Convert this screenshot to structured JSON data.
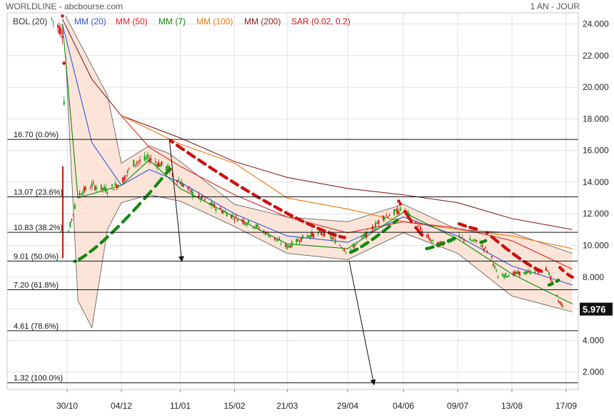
{
  "header": {
    "title": "WORLDLINE - abcbourse.com",
    "period": "1 AN - JOUR"
  },
  "legend": [
    {
      "label": "BOL (20)",
      "color": "#333333"
    },
    {
      "label": "MM (20)",
      "color": "#3355dd"
    },
    {
      "label": "MM (50)",
      "color": "#dd2222"
    },
    {
      "label": "MM (7)",
      "color": "#118811"
    },
    {
      "label": "MM (100)",
      "color": "#ee7711"
    },
    {
      "label": "MM (200)",
      "color": "#882222"
    },
    {
      "label": "SAR (0.02, 0.2)",
      "color": "#cc1111"
    }
  ],
  "chart_data": {
    "type": "line",
    "title": "WORLDLINE - abcbourse.com",
    "ylim": [
      0.9,
      24.7
    ],
    "y_ticks": [
      2,
      4,
      6,
      8,
      10,
      12,
      14,
      16,
      18,
      20,
      22,
      24
    ],
    "y_tick_labels": [
      "2.000",
      "4.000",
      "6.000",
      "8.000",
      "10.000",
      "12.000",
      "14.000",
      "16.000",
      "18.000",
      "20.000",
      "22.000",
      "24.000"
    ],
    "x_ticks": [
      "30/10",
      "04/12",
      "11/01",
      "15/02",
      "21/03",
      "29/04",
      "04/06",
      "09/07",
      "13/08",
      "17/09"
    ],
    "last_price": {
      "value": 5.976,
      "label": "5.976"
    },
    "fibonacci_levels": [
      {
        "label": "16.70  (0.0%)",
        "value": 16.7
      },
      {
        "label": "13.07  (23.6%)",
        "value": 13.07
      },
      {
        "label": "10.83  (38.2%)",
        "value": 10.83
      },
      {
        "label": "9.01  (50.0%)",
        "value": 9.01
      },
      {
        "label": "7.20  (61.8%)",
        "value": 7.2
      },
      {
        "label": "4.61  (78.6%)",
        "value": 4.61
      },
      {
        "label": "1.32  (100.0%)",
        "value": 1.32
      }
    ],
    "annotations": [
      {
        "type": "arrow",
        "from": {
          "x": "04/01",
          "y": 16.7
        },
        "to": {
          "x": "12/01",
          "y": 9.0
        }
      },
      {
        "type": "arrow",
        "from": {
          "x": "30/04",
          "y": 9.0
        },
        "to": {
          "x": "16/05",
          "y": 1.2
        }
      }
    ],
    "price_path": [
      {
        "x": "20/10",
        "y": 24.3
      },
      {
        "x": "27/10",
        "y": 23.5
      },
      {
        "x": "30/10",
        "y": 10.5
      },
      {
        "x": "06/11",
        "y": 13.2
      },
      {
        "x": "15/11",
        "y": 13.8
      },
      {
        "x": "25/11",
        "y": 13.5
      },
      {
        "x": "04/12",
        "y": 14.0
      },
      {
        "x": "12/12",
        "y": 15.2
      },
      {
        "x": "22/12",
        "y": 15.5
      },
      {
        "x": "04/01",
        "y": 14.8
      },
      {
        "x": "11/01",
        "y": 14.0
      },
      {
        "x": "20/01",
        "y": 13.2
      },
      {
        "x": "01/02",
        "y": 12.5
      },
      {
        "x": "15/02",
        "y": 11.8
      },
      {
        "x": "01/03",
        "y": 11.2
      },
      {
        "x": "12/03",
        "y": 10.5
      },
      {
        "x": "21/03",
        "y": 9.9
      },
      {
        "x": "02/04",
        "y": 10.6
      },
      {
        "x": "15/04",
        "y": 10.8
      },
      {
        "x": "29/04",
        "y": 9.6
      },
      {
        "x": "10/05",
        "y": 10.6
      },
      {
        "x": "22/05",
        "y": 11.8
      },
      {
        "x": "04/06",
        "y": 12.3
      },
      {
        "x": "15/06",
        "y": 11.0
      },
      {
        "x": "25/06",
        "y": 10.0
      },
      {
        "x": "09/07",
        "y": 10.5
      },
      {
        "x": "22/07",
        "y": 10.2
      },
      {
        "x": "30/07",
        "y": 9.5
      },
      {
        "x": "04/08",
        "y": 8.0
      },
      {
        "x": "13/08",
        "y": 8.2
      },
      {
        "x": "25/08",
        "y": 8.3
      },
      {
        "x": "05/09",
        "y": 8.5
      },
      {
        "x": "12/09",
        "y": 6.5
      },
      {
        "x": "17/09",
        "y": 5.976
      }
    ],
    "series": [
      {
        "name": "MM (200)",
        "color": "#882222",
        "points": [
          {
            "x": "27/10",
            "y": 24.3
          },
          {
            "x": "15/11",
            "y": 20.5
          },
          {
            "x": "04/12",
            "y": 18.2
          },
          {
            "x": "11/01",
            "y": 16.8
          },
          {
            "x": "15/02",
            "y": 15.3
          },
          {
            "x": "21/03",
            "y": 14.3
          },
          {
            "x": "29/04",
            "y": 13.6
          },
          {
            "x": "04/06",
            "y": 13.2
          },
          {
            "x": "09/07",
            "y": 12.7
          },
          {
            "x": "13/08",
            "y": 11.7
          },
          {
            "x": "21/09",
            "y": 11.0
          }
        ]
      },
      {
        "name": "MM (100)",
        "color": "#ee7711",
        "points": [
          {
            "x": "04/12",
            "y": 18.2
          },
          {
            "x": "11/01",
            "y": 16.4
          },
          {
            "x": "15/02",
            "y": 15.2
          },
          {
            "x": "21/03",
            "y": 13.0
          },
          {
            "x": "29/04",
            "y": 12.3
          },
          {
            "x": "04/06",
            "y": 11.5
          },
          {
            "x": "09/07",
            "y": 11.0
          },
          {
            "x": "13/08",
            "y": 10.6
          },
          {
            "x": "21/09",
            "y": 9.8
          }
        ]
      },
      {
        "name": "MM (50)",
        "color": "#dd2222",
        "points": [
          {
            "x": "04/12",
            "y": 18.2
          },
          {
            "x": "22/12",
            "y": 16.2
          },
          {
            "x": "11/01",
            "y": 15.0
          },
          {
            "x": "15/02",
            "y": 13.2
          },
          {
            "x": "21/03",
            "y": 11.8
          },
          {
            "x": "29/04",
            "y": 10.8
          },
          {
            "x": "04/06",
            "y": 11.5
          },
          {
            "x": "09/07",
            "y": 11.1
          },
          {
            "x": "13/08",
            "y": 10.3
          },
          {
            "x": "21/09",
            "y": 8.5
          }
        ]
      },
      {
        "name": "MM (20)",
        "color": "#3355dd",
        "points": [
          {
            "x": "27/10",
            "y": 24.0
          },
          {
            "x": "15/11",
            "y": 16.5
          },
          {
            "x": "04/12",
            "y": 13.8
          },
          {
            "x": "22/12",
            "y": 14.8
          },
          {
            "x": "11/01",
            "y": 14.0
          },
          {
            "x": "15/02",
            "y": 12.0
          },
          {
            "x": "21/03",
            "y": 10.6
          },
          {
            "x": "29/04",
            "y": 10.2
          },
          {
            "x": "04/06",
            "y": 11.8
          },
          {
            "x": "09/07",
            "y": 10.6
          },
          {
            "x": "13/08",
            "y": 8.7
          },
          {
            "x": "21/09",
            "y": 7.5
          }
        ]
      },
      {
        "name": "MM (7)",
        "color": "#118811",
        "points": [
          {
            "x": "27/10",
            "y": 24.0
          },
          {
            "x": "06/11",
            "y": 13.0
          },
          {
            "x": "04/12",
            "y": 13.8
          },
          {
            "x": "22/12",
            "y": 15.4
          },
          {
            "x": "11/01",
            "y": 13.6
          },
          {
            "x": "15/02",
            "y": 11.8
          },
          {
            "x": "21/03",
            "y": 10.1
          },
          {
            "x": "29/04",
            "y": 9.8
          },
          {
            "x": "04/06",
            "y": 12.1
          },
          {
            "x": "09/07",
            "y": 10.4
          },
          {
            "x": "13/08",
            "y": 8.2
          },
          {
            "x": "21/09",
            "y": 6.3
          }
        ]
      }
    ],
    "bollinger": {
      "label": "BOL (20)",
      "upper": [
        {
          "x": "29/10",
          "y": 24.5
        },
        {
          "x": "25/11",
          "y": 19.5
        },
        {
          "x": "04/12",
          "y": 15.2
        },
        {
          "x": "22/12",
          "y": 16.3
        },
        {
          "x": "04/01",
          "y": 15.8
        },
        {
          "x": "11/01",
          "y": 15.3
        },
        {
          "x": "15/02",
          "y": 12.6
        },
        {
          "x": "21/03",
          "y": 11.8
        },
        {
          "x": "29/04",
          "y": 11.5
        },
        {
          "x": "04/06",
          "y": 12.6
        },
        {
          "x": "09/07",
          "y": 11.0
        },
        {
          "x": "13/08",
          "y": 10.8
        },
        {
          "x": "21/09",
          "y": 9.5
        }
      ],
      "lower": [
        {
          "x": "29/10",
          "y": 22.0
        },
        {
          "x": "06/11",
          "y": 6.5
        },
        {
          "x": "15/11",
          "y": 4.8
        },
        {
          "x": "25/11",
          "y": 11.0
        },
        {
          "x": "04/12",
          "y": 12.7
        },
        {
          "x": "22/12",
          "y": 13.2
        },
        {
          "x": "11/01",
          "y": 12.8
        },
        {
          "x": "15/02",
          "y": 11.2
        },
        {
          "x": "21/03",
          "y": 9.5
        },
        {
          "x": "29/04",
          "y": 9.1
        },
        {
          "x": "04/06",
          "y": 10.8
        },
        {
          "x": "09/07",
          "y": 9.5
        },
        {
          "x": "13/08",
          "y": 6.8
        },
        {
          "x": "21/09",
          "y": 5.8
        }
      ]
    },
    "sar": {
      "label": "SAR (0.02, 0.2)",
      "up_color": "#118811",
      "down_color": "#cc1111",
      "segments": [
        {
          "trend": "down",
          "from": {
            "x": "27/10",
            "y": 24.5
          },
          "to": {
            "x": "30/10",
            "y": 17.0
          }
        },
        {
          "trend": "up",
          "from": {
            "x": "04/11",
            "y": 9.0
          },
          "to": {
            "x": "04/01",
            "y": 14.8
          }
        },
        {
          "trend": "down",
          "from": {
            "x": "05/01",
            "y": 16.6
          },
          "to": {
            "x": "27/04",
            "y": 10.5
          }
        },
        {
          "trend": "up",
          "from": {
            "x": "29/04",
            "y": 9.5
          },
          "to": {
            "x": "31/05",
            "y": 11.6
          }
        },
        {
          "trend": "down",
          "from": {
            "x": "01/06",
            "y": 12.8
          },
          "to": {
            "x": "18/06",
            "y": 10.5
          }
        },
        {
          "trend": "up",
          "from": {
            "x": "19/06",
            "y": 9.8
          },
          "to": {
            "x": "08/07",
            "y": 10.5
          }
        },
        {
          "trend": "down",
          "from": {
            "x": "09/07",
            "y": 11.4
          },
          "to": {
            "x": "23/07",
            "y": 11.0
          }
        },
        {
          "trend": "up",
          "from": {
            "x": "24/07",
            "y": 10.2
          },
          "to": {
            "x": "27/07",
            "y": 10.3
          }
        },
        {
          "trend": "down",
          "from": {
            "x": "28/07",
            "y": 10.8
          },
          "to": {
            "x": "03/09",
            "y": 8.3
          }
        },
        {
          "trend": "up",
          "from": {
            "x": "06/09",
            "y": 7.5
          },
          "to": {
            "x": "12/09",
            "y": 7.8
          }
        },
        {
          "trend": "down",
          "from": {
            "x": "13/09",
            "y": 8.6
          },
          "to": {
            "x": "21/09",
            "y": 8.0
          }
        }
      ]
    }
  }
}
